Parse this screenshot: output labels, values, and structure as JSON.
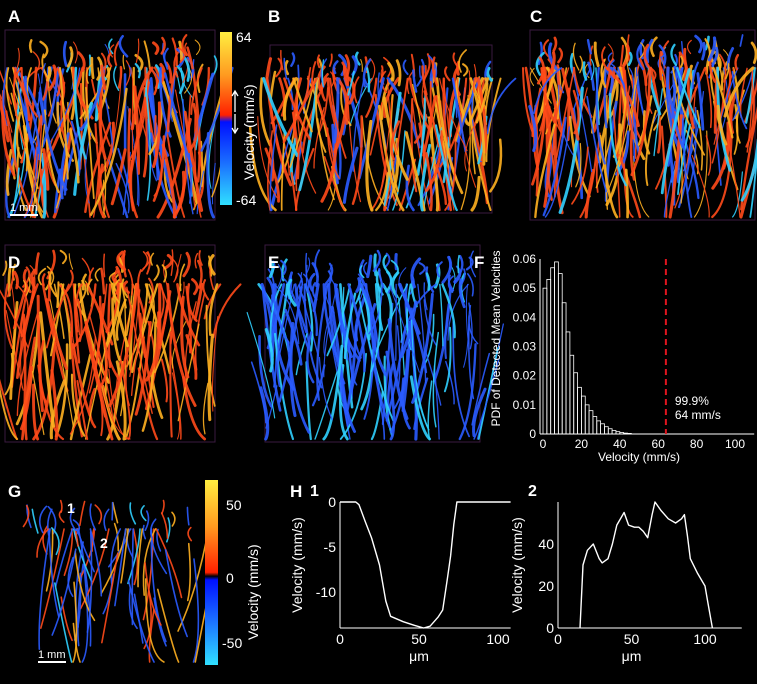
{
  "panel_labels": [
    "A",
    "B",
    "C",
    "D",
    "E",
    "F",
    "G",
    "H"
  ],
  "scale_bar_label": "1 mm",
  "colorbar_top": {
    "label": "Velocity (mm/s)",
    "max_label": "64",
    "min_label": "-64"
  },
  "colorbar_bottom": {
    "label": "Velocity (mm/s)",
    "ticks": [
      "50",
      "0",
      "-50"
    ]
  },
  "vessel_markers": [
    "1",
    "2"
  ],
  "colors": {
    "positive": "#ff4a1a",
    "positive_high": "#ffb020",
    "negative": "#2a5bff",
    "negative_high": "#30d0ff",
    "threshold": "#e0141e"
  },
  "chart_data": [
    {
      "panel": "F",
      "type": "bar",
      "ylabel": "PDF of Detected Mean Velocities",
      "xlabel": "Velocity (mm/s)",
      "xlim": [
        0,
        110
      ],
      "ylim": [
        0,
        0.06
      ],
      "xticks": [
        "0",
        "20",
        "40",
        "60",
        "80",
        "100"
      ],
      "yticks": [
        "0",
        "0.01",
        "0.02",
        "0.03",
        "0.04",
        "0.05",
        "0.06"
      ],
      "bin_width": 2,
      "values": [
        0.05,
        0.053,
        0.057,
        0.059,
        0.055,
        0.045,
        0.035,
        0.027,
        0.021,
        0.016,
        0.013,
        0.01,
        0.008,
        0.006,
        0.0045,
        0.0035,
        0.0025,
        0.0018,
        0.0012,
        0.0008,
        0.0005,
        0.0003,
        0.0002
      ],
      "threshold": {
        "x": 64,
        "label_line1": "99.9%",
        "label_line2": "64 mm/s"
      }
    },
    {
      "panel": "H1",
      "type": "line",
      "title": "1",
      "xlabel": "μm",
      "ylabel": "Velocity (mm/s)",
      "xlim": [
        0,
        108
      ],
      "ylim": [
        -14,
        0
      ],
      "xticks": [
        "0",
        "50",
        "100"
      ],
      "yticks": [
        "0",
        "-5",
        "-10"
      ],
      "x": [
        0,
        10,
        12,
        16,
        20,
        25,
        29,
        32,
        40,
        47,
        53,
        57,
        62,
        65,
        68,
        70,
        72,
        74,
        90,
        108
      ],
      "y": [
        0,
        0,
        -0.3,
        -2.2,
        -4,
        -7,
        -11,
        -12.7,
        -13.3,
        -13.7,
        -14,
        -13.8,
        -12.8,
        -12,
        -8.5,
        -6,
        -2.5,
        0,
        0,
        0
      ]
    },
    {
      "panel": "H2",
      "type": "line",
      "title": "2",
      "xlabel": "μm",
      "ylabel": "Velocity (mm/s)",
      "xlim": [
        0,
        125
      ],
      "ylim": [
        0,
        60
      ],
      "xticks": [
        "0",
        "50",
        "100"
      ],
      "yticks": [
        "0",
        "20",
        "40"
      ],
      "x": [
        15,
        17,
        20,
        24,
        28,
        30,
        34,
        37,
        40,
        45,
        48,
        52,
        55,
        58,
        61,
        64,
        66,
        70,
        75,
        80,
        84,
        86,
        88,
        90,
        95,
        100,
        102,
        105
      ],
      "y": [
        0,
        30,
        37,
        40,
        33,
        31,
        33,
        40,
        49,
        55,
        49,
        48,
        48,
        46,
        43,
        54,
        60,
        56,
        52,
        50,
        52,
        54,
        44,
        33,
        26,
        20,
        12,
        0
      ]
    }
  ]
}
